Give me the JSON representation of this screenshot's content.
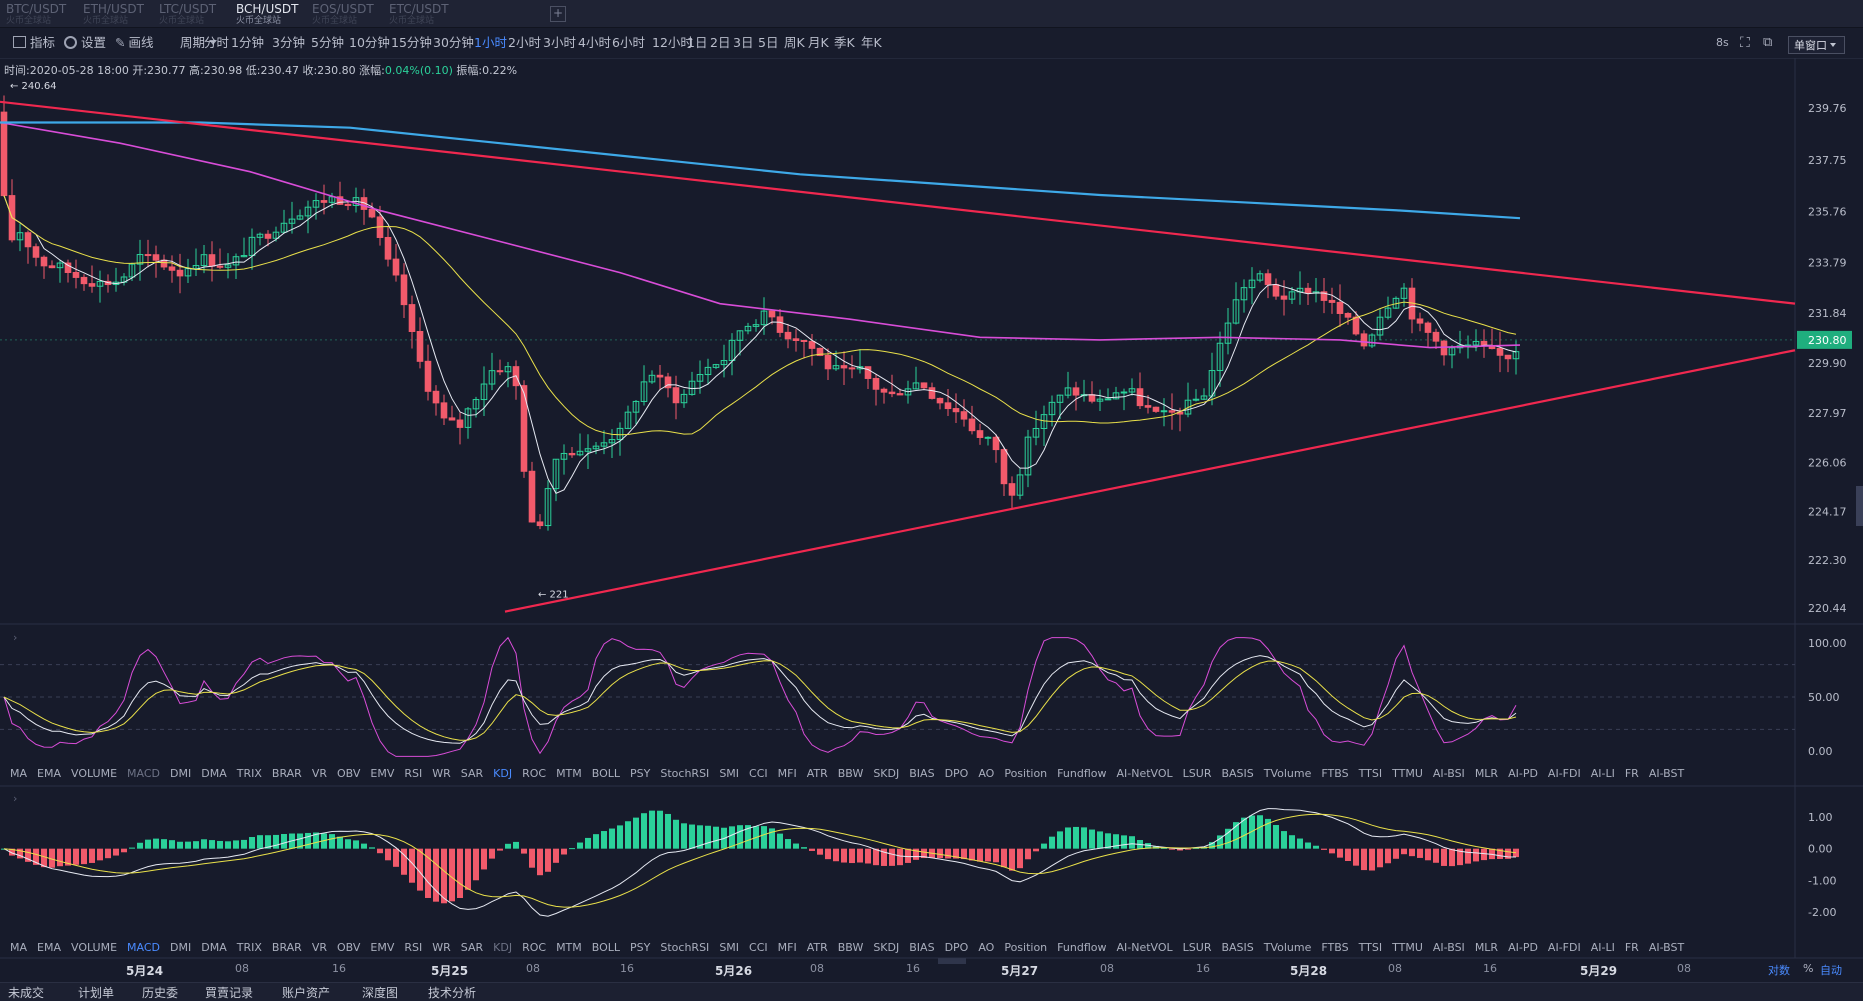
{
  "tabs": [
    {
      "pair": "BTC/USDT",
      "sub": "火币全球站",
      "active": false
    },
    {
      "pair": "ETH/USDT",
      "sub": "火币全球站",
      "active": false
    },
    {
      "pair": "LTC/USDT",
      "sub": "火币全球站",
      "active": false
    },
    {
      "pair": "BCH/USDT",
      "sub": "火币全球站",
      "active": true
    },
    {
      "pair": "EOS/USDT",
      "sub": "火币全球站",
      "active": false
    },
    {
      "pair": "ETC/USDT",
      "sub": "火币全球站",
      "active": false
    }
  ],
  "tab_add_label": "+",
  "toolbar": {
    "indicators": "指标",
    "settings": "设置",
    "draw": "画线",
    "period": "周期",
    "periods": [
      "分时",
      "1分钟",
      "3分钟",
      "5分钟",
      "10分钟",
      "15分钟",
      "30分钟",
      "1小时",
      "2小时",
      "3小时",
      "4小时",
      "6小时",
      "12小时",
      "1日",
      "2日",
      "3日",
      "5日",
      "周K",
      "月K",
      "季K",
      "年K"
    ],
    "active_period": "1小时",
    "refresh": "8s",
    "window_mode": "单窗口"
  },
  "info": {
    "time": "时间:2020-05-28 18:00",
    "open": "开:230.77",
    "high": "高:230.98",
    "low": "低:230.47",
    "close": "收:230.80",
    "change_label": "涨幅:",
    "change": "0.04%(0.10)",
    "amplitude": "振幅:0.22%"
  },
  "price_axis": {
    "ticks": [
      "239.76",
      "237.75",
      "235.76",
      "233.79",
      "231.84",
      "229.90",
      "227.97",
      "226.06",
      "224.17",
      "222.30",
      "220.44"
    ],
    "current_price": "230.80",
    "high_marker": "240.64",
    "low_marker": "221"
  },
  "kdj_axis": [
    "100.00",
    "50.00",
    "0.00"
  ],
  "macd_axis": [
    "1.00",
    "0.00",
    "-1.00",
    "-2.00"
  ],
  "indicator_list": [
    "MA",
    "EMA",
    "VOLUME",
    "MACD",
    "DMI",
    "DMA",
    "TRIX",
    "BRAR",
    "VR",
    "OBV",
    "EMV",
    "RSI",
    "WR",
    "SAR",
    "KDJ",
    "ROC",
    "MTM",
    "BOLL",
    "PSY",
    "StochRSI",
    "SMI",
    "CCI",
    "MFI",
    "ATR",
    "BBW",
    "SKDJ",
    "BIAS",
    "DPO",
    "AO",
    "Position",
    "Fundflow",
    "AI-NetVOL",
    "LSUR",
    "BASIS",
    "TVolume",
    "FTBS",
    "TTSI",
    "TTMU",
    "AI-BSI",
    "MLR",
    "AI-PD",
    "AI-FDI",
    "AI-LI",
    "FR",
    "AI-BST"
  ],
  "indicator_row1_active": "KDJ",
  "indicator_row1_dim": "MACD",
  "indicator_row2_active": "MACD",
  "indicator_row2_dim": "KDJ",
  "time_axis": [
    "5月24",
    "08",
    "16",
    "5月25",
    "08",
    "16",
    "5月26",
    "08",
    "16",
    "5月27",
    "08",
    "16",
    "5月28",
    "08",
    "16",
    "5月29",
    "08"
  ],
  "scale_controls": {
    "log": "对数",
    "percent": "%",
    "auto": "自动"
  },
  "bottom_tabs": [
    "未成交",
    "计划单",
    "历史委",
    "買賣记录",
    "账户资产",
    "深度图",
    "技术分析"
  ],
  "colors": {
    "up": "#2bd19a",
    "down": "#f15a6b",
    "ma_short": "#e6e9f2",
    "ma_mid": "#e9e04a",
    "ma_long": "#d84dd8",
    "ma_longest": "#3ea9e8",
    "trendline": "#f0284f",
    "accent": "#4a8bff"
  },
  "chart_data": {
    "type": "candlestick",
    "interval": "1小时",
    "price_ylim": [
      219.8,
      241.0
    ],
    "candles": []
  }
}
